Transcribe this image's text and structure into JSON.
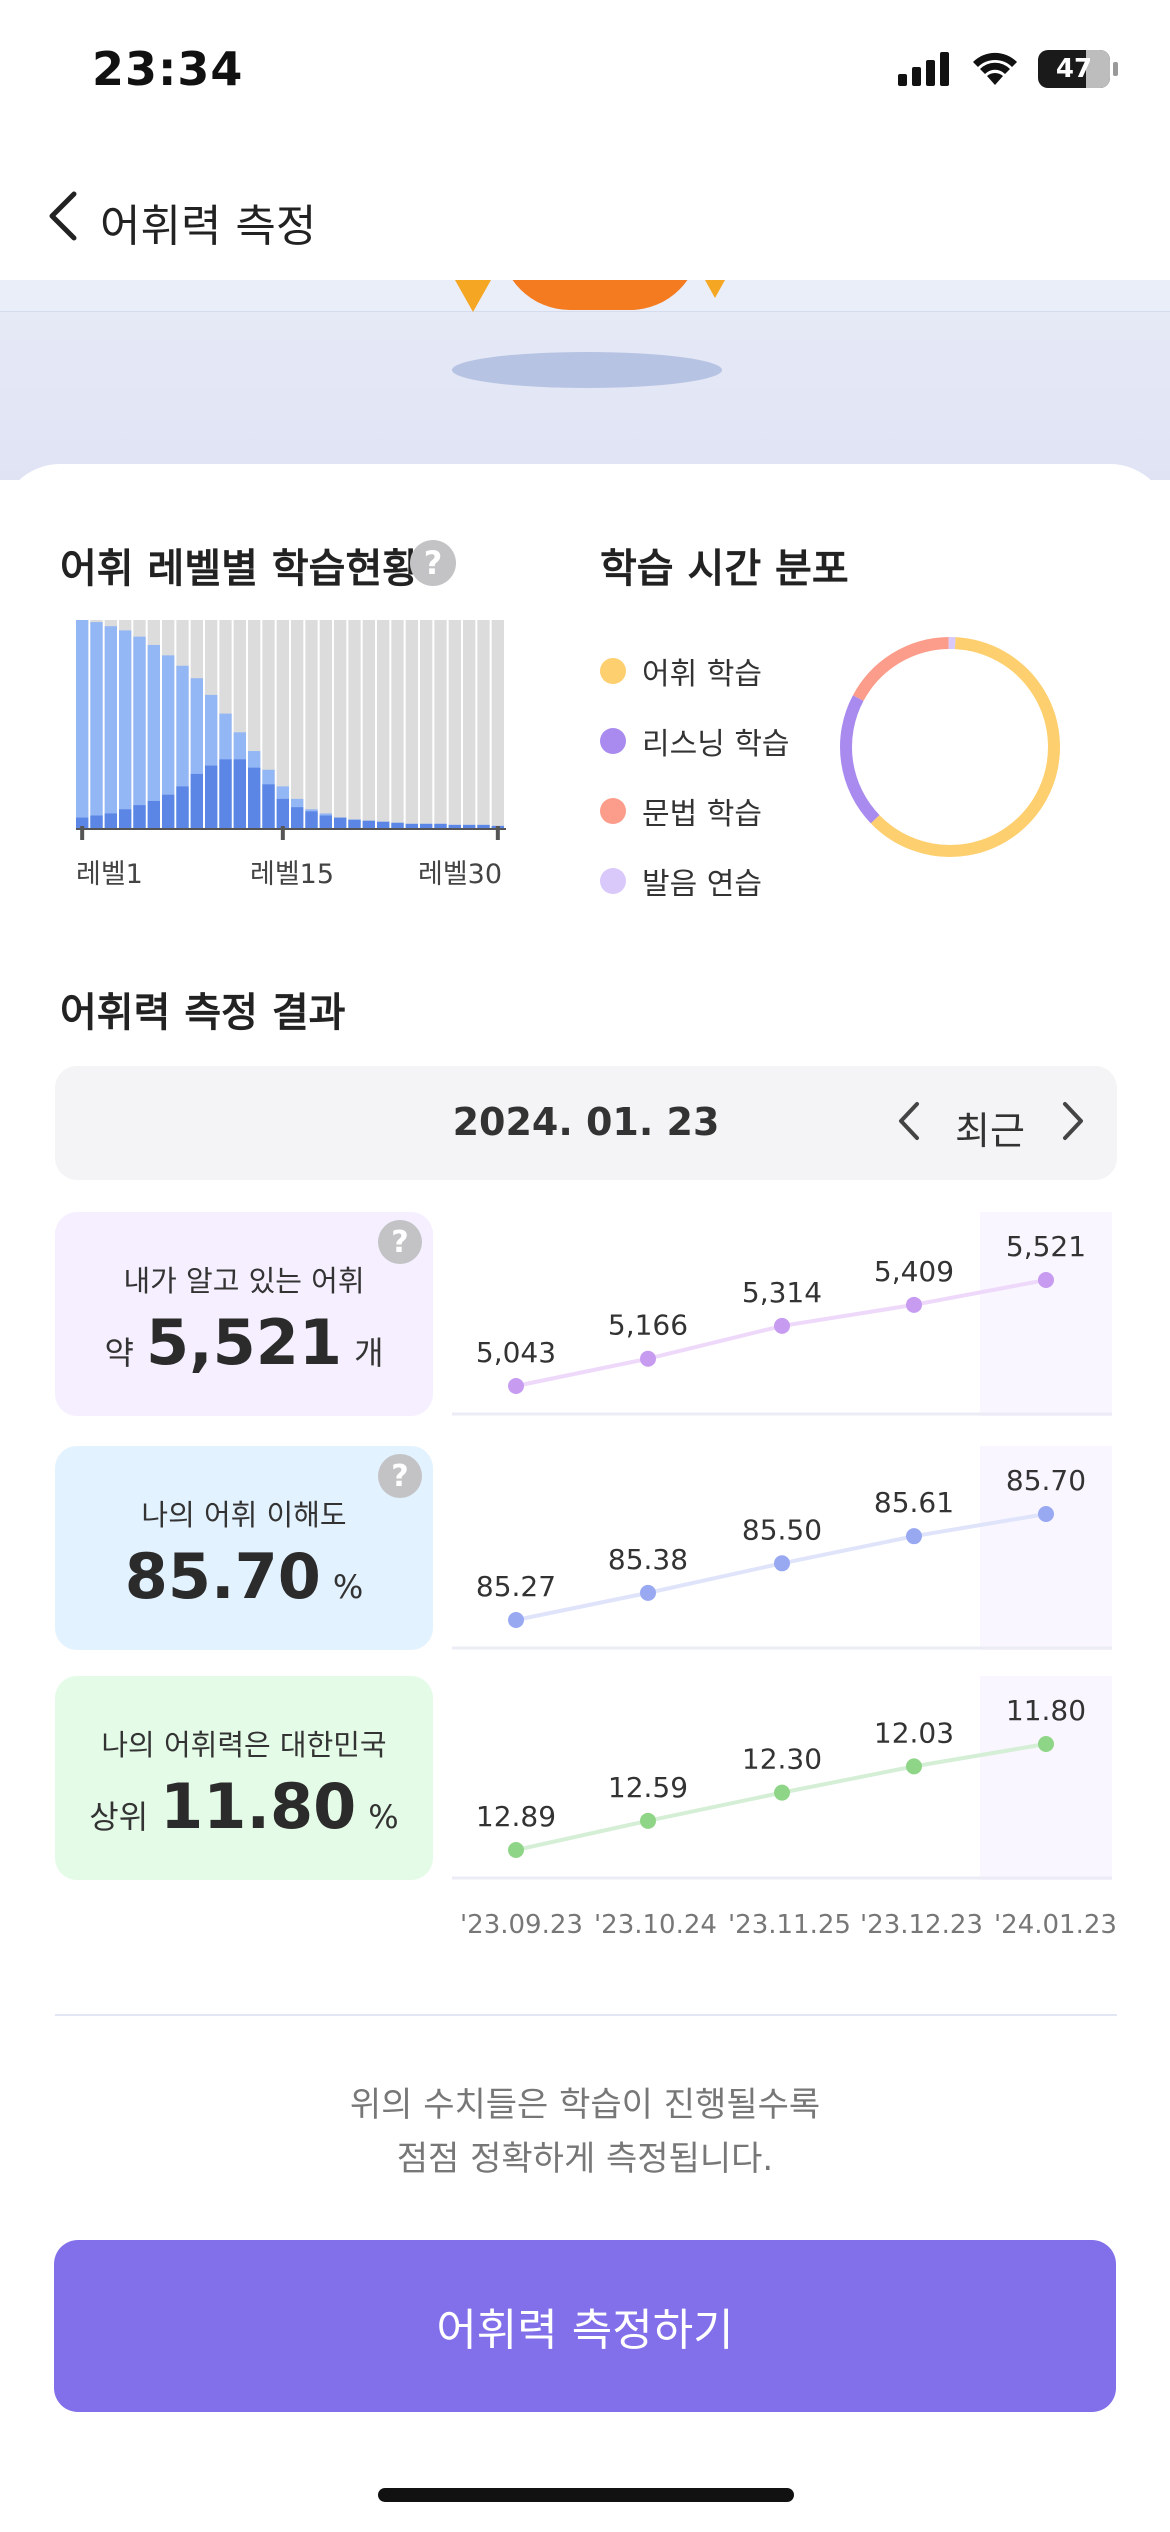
{
  "status_bar": {
    "time": "23:34",
    "battery": "47"
  },
  "header": {
    "title": "어휘력 측정"
  },
  "level_section": {
    "title": "어휘 레벨별 학습현황",
    "help": "?",
    "axis_labels": [
      "레벨1",
      "레벨15",
      "레벨30"
    ],
    "chart_data": {
      "type": "bar",
      "categories": [
        "1",
        "2",
        "3",
        "4",
        "5",
        "6",
        "7",
        "8",
        "9",
        "10",
        "11",
        "12",
        "13",
        "14",
        "15",
        "16",
        "17",
        "18",
        "19",
        "20",
        "21",
        "22",
        "23",
        "24",
        "25",
        "26",
        "27",
        "28",
        "29",
        "30"
      ],
      "series": [
        {
          "values": [
            1.0,
            0.99,
            0.97,
            0.95,
            0.92,
            0.88,
            0.83,
            0.78,
            0.72,
            0.64,
            0.55,
            0.46,
            0.37,
            0.28,
            0.2,
            0.14,
            0.09,
            0.07,
            0.05,
            0.04,
            0.035,
            0.03,
            0.025,
            0.02,
            0.02,
            0.02,
            0.015,
            0.015,
            0.015,
            0.01
          ]
        },
        {
          "values": [
            0.05,
            0.06,
            0.07,
            0.09,
            0.11,
            0.13,
            0.16,
            0.2,
            0.26,
            0.3,
            0.33,
            0.33,
            0.29,
            0.21,
            0.14,
            0.1,
            0.08,
            0.06,
            0.05,
            0.04,
            0.035,
            0.03,
            0.025,
            0.02,
            0.02,
            0.02,
            0.015,
            0.015,
            0.015,
            0.01
          ]
        }
      ],
      "ylim": [
        0,
        1
      ]
    }
  },
  "time_section": {
    "title": "학습 시간 분포",
    "legend": [
      {
        "label": "어휘 학습",
        "color": "#fdcf6e"
      },
      {
        "label": "리스닝 학습",
        "color": "#a98bef"
      },
      {
        "label": "문법 학습",
        "color": "#fc9c8a"
      },
      {
        "label": "발음 연습",
        "color": "#d9c9fb"
      }
    ],
    "chart_data": {
      "type": "pie",
      "categories": [
        "어휘 학습",
        "리스닝 학습",
        "문법 학습",
        "발음 연습"
      ],
      "values": [
        62,
        20,
        17,
        1
      ]
    }
  },
  "result_section": {
    "title": "어휘력 측정 결과",
    "date": "2024. 01. 23",
    "recent_label": "최근",
    "x_labels": [
      "'23.09.23",
      "'23.10.24",
      "'23.11.25",
      "'23.12.23",
      "'24.01.23"
    ],
    "metrics": [
      {
        "label": "내가 알고 있는 어휘",
        "prefix": "약",
        "value": "5,521",
        "suffix": "개",
        "help": "?",
        "bg": "#f5efff",
        "line": "#eed9fb",
        "dot": "#c79cf0"
      },
      {
        "label": "나의 어휘 이해도",
        "prefix": "",
        "value": "85.70",
        "suffix": "%",
        "help": "?",
        "bg": "#e3f2ff",
        "line": "#dfe4fb",
        "dot": "#98a9f2"
      },
      {
        "label": "나의 어휘력은 대한민국",
        "prefix": "상위",
        "value": "11.80",
        "suffix": "%",
        "help": "",
        "bg": "#e4fbe7",
        "line": "#d5efd6",
        "dot": "#8fd587"
      }
    ],
    "chart_data": [
      {
        "type": "line",
        "x": [
          "'23.09.23",
          "'23.10.24",
          "'23.11.25",
          "'23.12.23",
          "'24.01.23"
        ],
        "values": [
          5043,
          5166,
          5314,
          5409,
          5521
        ],
        "labels": [
          "5,043",
          "5,166",
          "5,314",
          "5,409",
          "5,521"
        ]
      },
      {
        "type": "line",
        "x": [
          "'23.09.23",
          "'23.10.24",
          "'23.11.25",
          "'23.12.23",
          "'24.01.23"
        ],
        "values": [
          85.27,
          85.38,
          85.5,
          85.61,
          85.7
        ],
        "labels": [
          "85.27",
          "85.38",
          "85.50",
          "85.61",
          "85.70"
        ]
      },
      {
        "type": "line",
        "x": [
          "'23.09.23",
          "'23.10.24",
          "'23.11.25",
          "'23.12.23",
          "'24.01.23"
        ],
        "values": [
          12.89,
          12.59,
          12.3,
          12.03,
          11.8
        ],
        "labels": [
          "12.89",
          "12.59",
          "12.30",
          "12.03",
          "11.80"
        ]
      }
    ]
  },
  "note": {
    "line1": "위의 수치들은 학습이 진행될수록",
    "line2": "점점 정확하게 측정됩니다."
  },
  "cta": {
    "label": "어휘력 측정하기"
  }
}
